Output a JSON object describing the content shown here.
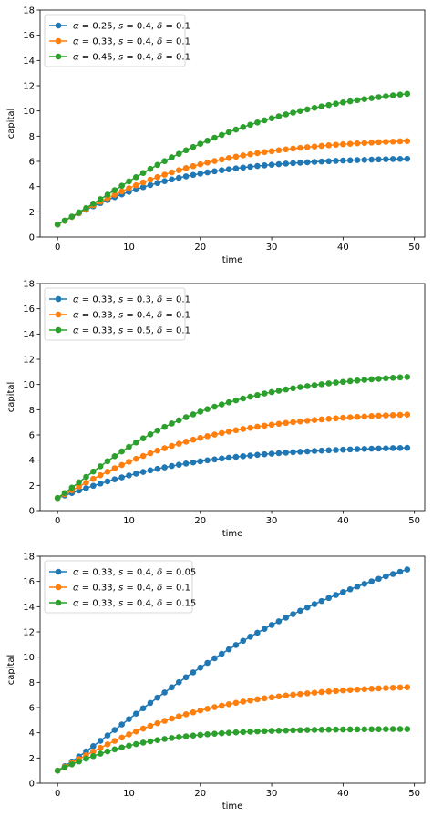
{
  "chart_data": [
    {
      "type": "line",
      "xlabel": "time",
      "ylabel": "capital",
      "xlim": [
        -2.45,
        51.45
      ],
      "ylim": [
        0,
        18
      ],
      "xticks": [
        0,
        10,
        20,
        30,
        40,
        50
      ],
      "yticks": [
        0,
        2,
        4,
        6,
        8,
        10,
        12,
        14,
        16,
        18
      ],
      "legend_position": "upper left",
      "grid": false,
      "k0": 1,
      "t_start": 0,
      "t_end": 49,
      "series": [
        {
          "name": "α = 0.25, s = 0.4, δ = 0.1",
          "legend_parts": [
            "0.25",
            "0.4",
            "0.1"
          ],
          "alpha": 0.25,
          "s": 0.4,
          "delta": 0.1,
          "color": "#1f77b4"
        },
        {
          "name": "α = 0.33, s = 0.4, δ = 0.1",
          "legend_parts": [
            "0.33",
            "0.4",
            "0.1"
          ],
          "alpha": 0.33,
          "s": 0.4,
          "delta": 0.1,
          "color": "#ff7f0e"
        },
        {
          "name": "α = 0.45, s = 0.4, δ = 0.1",
          "legend_parts": [
            "0.45",
            "0.4",
            "0.1"
          ],
          "alpha": 0.45,
          "s": 0.4,
          "delta": 0.1,
          "color": "#2ca02c"
        }
      ]
    },
    {
      "type": "line",
      "xlabel": "time",
      "ylabel": "capital",
      "xlim": [
        -2.45,
        51.45
      ],
      "ylim": [
        0,
        18
      ],
      "xticks": [
        0,
        10,
        20,
        30,
        40,
        50
      ],
      "yticks": [
        0,
        2,
        4,
        6,
        8,
        10,
        12,
        14,
        16,
        18
      ],
      "legend_position": "upper left",
      "grid": false,
      "k0": 1,
      "t_start": 0,
      "t_end": 49,
      "series": [
        {
          "name": "α = 0.33, s = 0.3, δ = 0.1",
          "legend_parts": [
            "0.33",
            "0.3",
            "0.1"
          ],
          "alpha": 0.33,
          "s": 0.3,
          "delta": 0.1,
          "color": "#1f77b4"
        },
        {
          "name": "α = 0.33, s = 0.4, δ = 0.1",
          "legend_parts": [
            "0.33",
            "0.4",
            "0.1"
          ],
          "alpha": 0.33,
          "s": 0.4,
          "delta": 0.1,
          "color": "#ff7f0e"
        },
        {
          "name": "α = 0.33, s = 0.5, δ = 0.1",
          "legend_parts": [
            "0.33",
            "0.5",
            "0.1"
          ],
          "alpha": 0.33,
          "s": 0.5,
          "delta": 0.1,
          "color": "#2ca02c"
        }
      ]
    },
    {
      "type": "line",
      "xlabel": "time",
      "ylabel": "capital",
      "xlim": [
        -2.45,
        51.45
      ],
      "ylim": [
        0,
        18
      ],
      "xticks": [
        0,
        10,
        20,
        30,
        40,
        50
      ],
      "yticks": [
        0,
        2,
        4,
        6,
        8,
        10,
        12,
        14,
        16,
        18
      ],
      "legend_position": "upper left",
      "grid": false,
      "k0": 1,
      "t_start": 0,
      "t_end": 49,
      "series": [
        {
          "name": "α = 0.33, s = 0.4, δ = 0.05",
          "legend_parts": [
            "0.33",
            "0.4",
            "0.05"
          ],
          "alpha": 0.33,
          "s": 0.4,
          "delta": 0.05,
          "color": "#1f77b4"
        },
        {
          "name": "α = 0.33, s = 0.4, δ = 0.1",
          "legend_parts": [
            "0.33",
            "0.4",
            "0.1"
          ],
          "alpha": 0.33,
          "s": 0.4,
          "delta": 0.1,
          "color": "#ff7f0e"
        },
        {
          "name": "α = 0.33, s = 0.4, δ = 0.15",
          "legend_parts": [
            "0.33",
            "0.4",
            "0.15"
          ],
          "alpha": 0.33,
          "s": 0.4,
          "delta": 0.15,
          "color": "#2ca02c"
        }
      ]
    }
  ]
}
